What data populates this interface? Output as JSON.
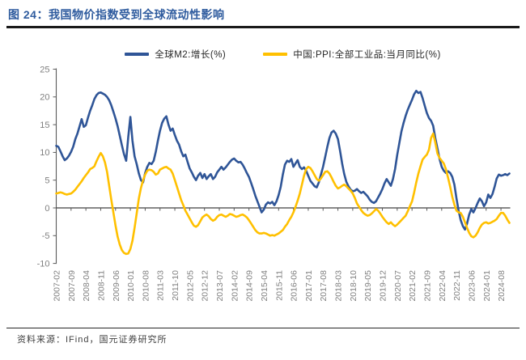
{
  "figure": {
    "title": "图 24：我国物价指数受到全球流动性影响"
  },
  "source_note": "资料来源：IFind，国元证券研究所",
  "chart_data": {
    "type": "line",
    "title": "图 24：我国物价指数受到全球流动性影响",
    "x_start": "2007-02",
    "x_interval_months": 1,
    "x_tick_every_months": 7,
    "x_tick_labels": [
      "2007-02",
      "2007-09",
      "2008-04",
      "2008-11",
      "2009-06",
      "2010-01",
      "2010-08",
      "2011-03",
      "2011-10",
      "2012-05",
      "2012-12",
      "2013-07",
      "2014-02",
      "2014-09",
      "2015-04",
      "2015-11",
      "2016-06",
      "2017-01",
      "2017-08",
      "2018-03",
      "2018-10",
      "2019-05",
      "2019-12",
      "2020-07",
      "2021-02",
      "2021-09",
      "2022-04",
      "2022-11",
      "2023-06",
      "2024-01",
      "2024-08"
    ],
    "ylim": [
      -10,
      25
    ],
    "y_ticks": [
      25,
      20,
      15,
      10,
      5,
      0,
      -5,
      -10
    ],
    "grid": false,
    "legend_position": "top",
    "axis_color": "#595959",
    "tick_label_color": "#808080",
    "series": [
      {
        "name": "全球M2:增长(%)",
        "color": "#2F5597",
        "values": [
          11.2,
          11.0,
          10.2,
          9.3,
          8.6,
          8.9,
          9.4,
          10.1,
          11.0,
          12.4,
          13.4,
          14.7,
          16.0,
          14.6,
          14.9,
          16.3,
          17.5,
          18.5,
          19.6,
          20.3,
          20.7,
          20.8,
          20.6,
          20.4,
          20.0,
          19.4,
          18.5,
          17.3,
          16.1,
          14.7,
          13.0,
          11.3,
          9.7,
          8.5,
          12.8,
          16.4,
          12.1,
          9.3,
          7.9,
          6.2,
          5.0,
          4.6,
          6.3,
          7.4,
          8.1,
          7.9,
          8.5,
          10.1,
          12.1,
          13.9,
          15.3,
          16.1,
          16.5,
          15.0,
          13.9,
          14.3,
          13.1,
          12.1,
          11.4,
          10.2,
          9.3,
          9.6,
          8.3,
          7.1,
          6.4,
          5.6,
          5.0,
          5.8,
          6.3,
          5.4,
          6.1,
          5.2,
          5.7,
          6.1,
          5.2,
          5.6,
          6.4,
          6.9,
          7.4,
          6.9,
          7.3,
          7.8,
          8.3,
          8.7,
          8.9,
          8.5,
          8.2,
          8.3,
          7.8,
          7.1,
          6.3,
          5.6,
          4.5,
          3.4,
          2.2,
          1.2,
          0.2,
          -0.8,
          -0.3,
          0.6,
          1.0,
          0.8,
          1.1,
          0.5,
          1.2,
          2.3,
          3.8,
          6.0,
          7.8,
          8.5,
          8.3,
          8.8,
          7.4,
          8.0,
          8.6,
          7.4,
          7.0,
          7.3,
          6.7,
          5.8,
          4.9,
          4.4,
          3.9,
          3.7,
          4.6,
          6.0,
          7.4,
          9.2,
          11.0,
          12.6,
          13.6,
          13.9,
          13.4,
          12.4,
          10.3,
          8.0,
          6.1,
          4.7,
          3.9,
          3.3,
          3.0,
          3.1,
          3.4,
          3.0,
          2.7,
          2.9,
          2.5,
          2.1,
          1.5,
          1.1,
          0.9,
          1.2,
          1.9,
          2.6,
          3.4,
          4.4,
          5.2,
          4.6,
          4.0,
          5.2,
          7.0,
          9.5,
          11.7,
          13.8,
          15.3,
          16.6,
          17.7,
          18.6,
          19.5,
          20.5,
          21.1,
          20.7,
          20.9,
          19.8,
          18.4,
          17.1,
          16.2,
          15.7,
          14.8,
          12.6,
          10.7,
          8.8,
          7.4,
          6.7,
          6.3,
          6.6,
          6.3,
          5.6,
          4.2,
          1.7,
          -0.5,
          -2.2,
          -3.3,
          -3.9,
          -2.8,
          -1.2,
          -0.2,
          -0.8,
          0.0,
          0.9,
          1.7,
          1.2,
          0.3,
          1.0,
          2.4,
          1.8,
          2.5,
          3.8,
          5.3,
          6.0,
          5.8,
          5.9,
          6.1,
          5.9,
          6.2
        ]
      },
      {
        "name": "中国:PPI:全部工业品:当月同比(%)",
        "color": "#FFC000",
        "values": [
          2.6,
          2.7,
          2.8,
          2.7,
          2.5,
          2.4,
          2.5,
          2.6,
          2.9,
          3.3,
          3.8,
          4.3,
          4.8,
          5.4,
          5.9,
          6.4,
          7.0,
          7.2,
          7.5,
          8.4,
          9.2,
          9.9,
          9.3,
          8.2,
          6.5,
          4.0,
          1.5,
          -0.9,
          -3.2,
          -5.2,
          -6.6,
          -7.6,
          -8.1,
          -8.3,
          -8.2,
          -7.4,
          -5.9,
          -3.6,
          -1.0,
          1.7,
          3.6,
          5.0,
          6.0,
          6.7,
          6.9,
          6.8,
          6.5,
          6.0,
          6.2,
          6.9,
          7.1,
          7.3,
          7.4,
          7.1,
          6.9,
          6.2,
          5.0,
          3.8,
          2.6,
          1.4,
          0.5,
          -0.5,
          -1.2,
          -1.9,
          -2.6,
          -3.2,
          -3.4,
          -3.1,
          -2.4,
          -1.7,
          -1.4,
          -1.2,
          -1.5,
          -2.0,
          -2.3,
          -2.1,
          -1.6,
          -1.3,
          -1.2,
          -1.4,
          -1.6,
          -1.4,
          -1.1,
          -1.2,
          -1.4,
          -1.6,
          -1.5,
          -1.3,
          -1.2,
          -1.4,
          -1.7,
          -2.2,
          -2.8,
          -3.4,
          -4.0,
          -4.4,
          -4.6,
          -4.6,
          -4.5,
          -4.6,
          -4.8,
          -5.0,
          -4.9,
          -5.0,
          -4.8,
          -4.6,
          -4.3,
          -4.0,
          -3.4,
          -2.9,
          -2.2,
          -1.6,
          -0.8,
          0.2,
          1.3,
          2.6,
          4.2,
          5.8,
          7.0,
          7.4,
          7.2,
          6.6,
          5.9,
          5.2,
          4.9,
          5.3,
          5.9,
          6.5,
          6.6,
          6.2,
          5.5,
          4.7,
          4.0,
          3.5,
          3.7,
          4.0,
          4.2,
          3.9,
          3.5,
          3.1,
          2.6,
          1.8,
          0.8,
          0.2,
          -0.4,
          -0.9,
          -1.2,
          -1.4,
          -1.3,
          -1.0,
          -0.6,
          -0.2,
          -0.5,
          -1.0,
          -1.6,
          -2.1,
          -2.6,
          -2.9,
          -2.6,
          -3.0,
          -3.3,
          -3.0,
          -2.6,
          -2.2,
          -1.8,
          -1.4,
          -0.6,
          0.3,
          1.2,
          2.8,
          4.6,
          6.2,
          7.5,
          8.7,
          9.2,
          9.6,
          10.5,
          12.6,
          13.4,
          11.8,
          9.8,
          9.0,
          8.5,
          8.0,
          7.0,
          5.5,
          3.8,
          2.0,
          0.6,
          -0.5,
          -0.8,
          -0.9,
          -1.6,
          -2.6,
          -3.6,
          -4.5,
          -5.1,
          -5.3,
          -5.0,
          -4.4,
          -3.6,
          -3.0,
          -2.7,
          -2.6,
          -2.8,
          -2.7,
          -2.5,
          -2.3,
          -2.0,
          -1.4,
          -0.9,
          -0.9,
          -1.4,
          -2.1,
          -2.7
        ]
      }
    ]
  }
}
